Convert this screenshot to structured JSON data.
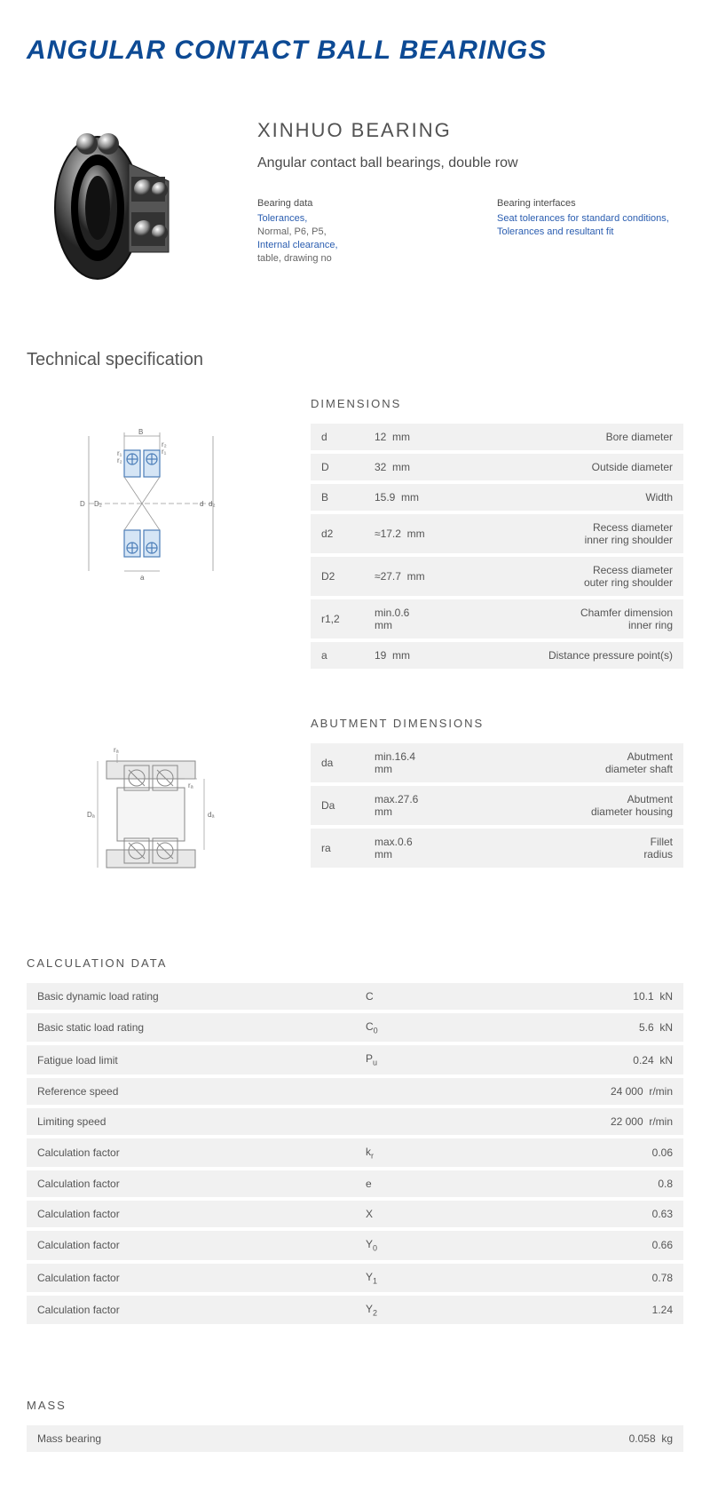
{
  "title": "ANGULAR CONTACT BALL BEARINGS",
  "brand": "XINHUO BEARING",
  "product_desc": "Angular contact ball bearings, double row",
  "bearing_data": {
    "title": "Bearing data",
    "items": [
      {
        "text": "Tolerances,",
        "link": true
      },
      {
        "text": "Normal, P6, P5,",
        "link": false
      },
      {
        "text": "Internal clearance,",
        "link": true
      },
      {
        "text": "table, drawing no",
        "link": false
      }
    ]
  },
  "bearing_interfaces": {
    "title": "Bearing interfaces",
    "items": [
      {
        "text": "Seat tolerances for standard conditions,",
        "link": true
      },
      {
        "text": "Tolerances and resultant fit",
        "link": true
      }
    ]
  },
  "tech_spec_title": "Technical specification",
  "dimensions": {
    "heading": "DIMENSIONS",
    "rows": [
      {
        "sym": "d",
        "val": "12",
        "unit": "mm",
        "desc": "Bore diameter"
      },
      {
        "sym": "D",
        "val": "32",
        "unit": "mm",
        "desc": "Outside diameter"
      },
      {
        "sym": "B",
        "val": "15.9",
        "unit": "mm",
        "desc": "Width"
      },
      {
        "sym": "d2",
        "val": "≈17.2",
        "unit": "mm",
        "desc": "Recess diameter inner ring shoulder"
      },
      {
        "sym": "D2",
        "val": "≈27.7",
        "unit": "mm",
        "desc": "Recess diameter outer ring shoulder"
      },
      {
        "sym": "r1,2",
        "val": "min.0.6",
        "unit": "mm",
        "desc": "Chamfer dimension inner ring"
      },
      {
        "sym": "a",
        "val": "19",
        "unit": "mm",
        "desc": "Distance pressure point(s)"
      }
    ]
  },
  "abutment": {
    "heading": "ABUTMENT DIMENSIONS",
    "rows": [
      {
        "sym": "da",
        "val": "min.16.4",
        "unit": "mm",
        "desc": "Abutment diameter shaft"
      },
      {
        "sym": "Da",
        "val": "max.27.6",
        "unit": "mm",
        "desc": "Abutment diameter housing"
      },
      {
        "sym": "ra",
        "val": "max.0.6",
        "unit": "mm",
        "desc": "Fillet radius"
      }
    ]
  },
  "calculation": {
    "heading": "CALCULATION DATA",
    "rows": [
      {
        "label": "Basic dynamic load rating",
        "sym": "C",
        "sub": "",
        "val": "10.1",
        "unit": "kN"
      },
      {
        "label": "Basic static load rating",
        "sym": "C",
        "sub": "0",
        "val": "5.6",
        "unit": "kN"
      },
      {
        "label": "Fatigue load limit",
        "sym": "P",
        "sub": "u",
        "val": "0.24",
        "unit": "kN"
      },
      {
        "label": "Reference speed",
        "sym": "",
        "sub": "",
        "val": "24 000",
        "unit": "r/min"
      },
      {
        "label": "Limiting speed",
        "sym": "",
        "sub": "",
        "val": "22 000",
        "unit": "r/min"
      },
      {
        "label": "Calculation factor",
        "sym": "k",
        "sub": "r",
        "val": "0.06",
        "unit": ""
      },
      {
        "label": "Calculation factor",
        "sym": "e",
        "sub": "",
        "val": "0.8",
        "unit": ""
      },
      {
        "label": "Calculation factor",
        "sym": "X",
        "sub": "",
        "val": "0.63",
        "unit": ""
      },
      {
        "label": "Calculation factor",
        "sym": "Y",
        "sub": "0",
        "val": "0.66",
        "unit": ""
      },
      {
        "label": "Calculation factor",
        "sym": "Y",
        "sub": "1",
        "val": "0.78",
        "unit": ""
      },
      {
        "label": "Calculation factor",
        "sym": "Y",
        "sub": "2",
        "val": "1.24",
        "unit": ""
      }
    ]
  },
  "mass": {
    "heading": "MASS",
    "rows": [
      {
        "label": "Mass bearing",
        "val": "0.058",
        "unit": "kg"
      }
    ]
  },
  "colors": {
    "title": "#0d4a94",
    "link": "#2a5db0",
    "text": "#555",
    "row_bg": "#f1f1f1"
  }
}
